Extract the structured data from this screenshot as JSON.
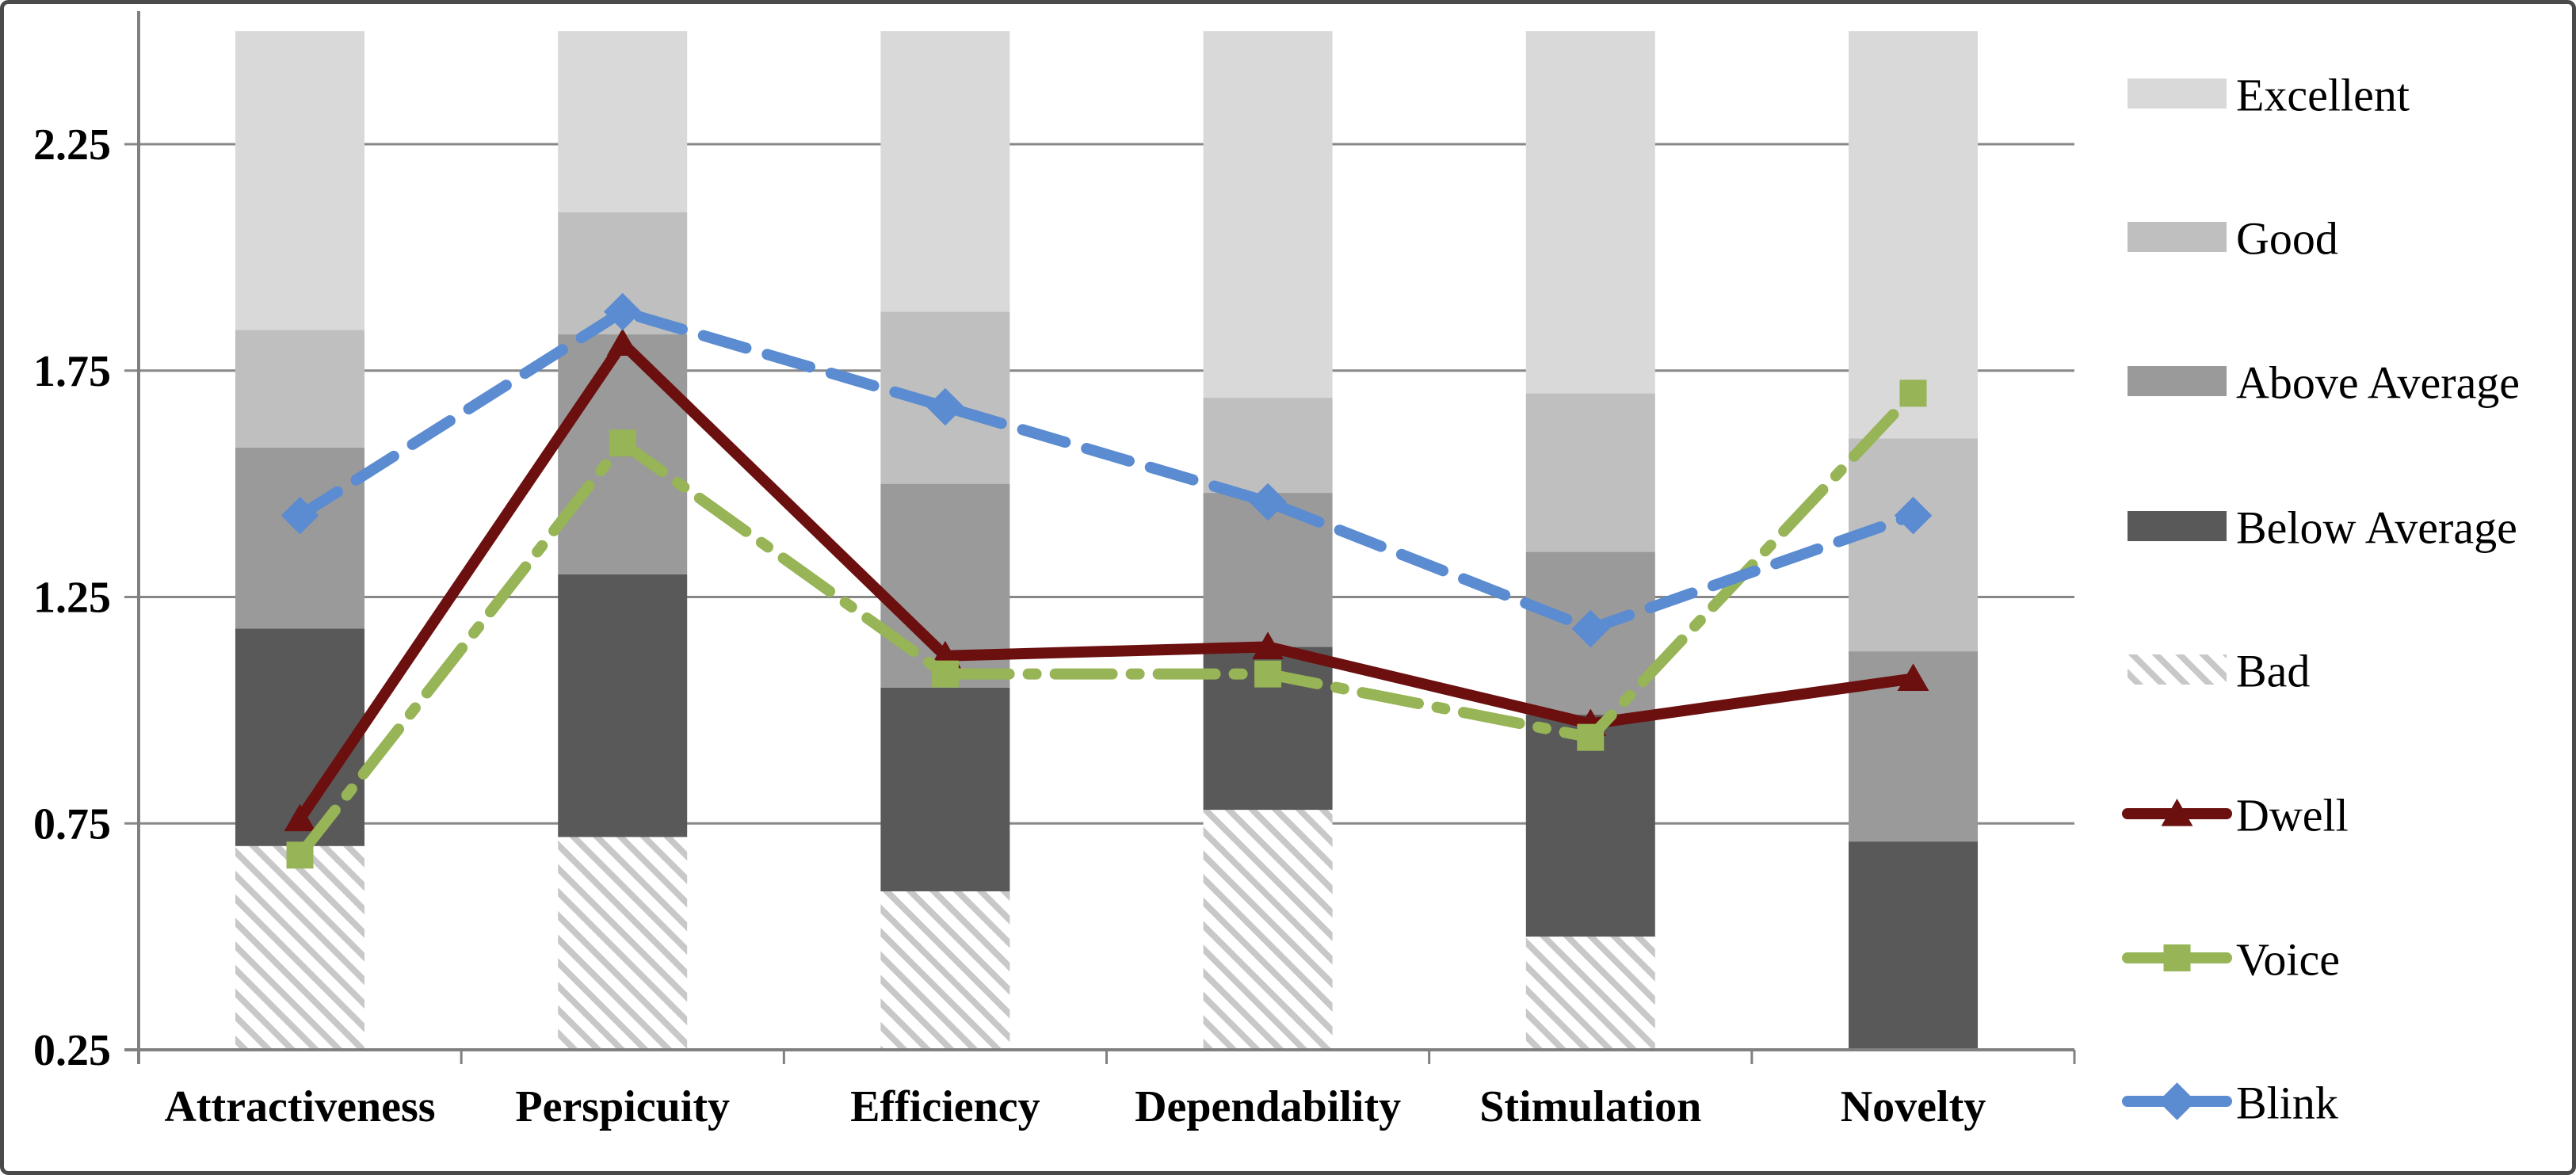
{
  "chart_data": {
    "type": "combo-stacked-band-line",
    "title": "",
    "categories": [
      "Attractiveness",
      "Perspicuity",
      "Efficiency",
      "Dependability",
      "Stimulation",
      "Novelty"
    ],
    "y_axis": {
      "min": 0.25,
      "max": 2.54,
      "tick_values": [
        0.25,
        0.75,
        1.25,
        1.75,
        2.25
      ],
      "tick_labels": [
        "0.25",
        "0.75",
        "1.25",
        "1.75",
        "2.25"
      ],
      "grid": true
    },
    "benchmark_bands": {
      "names": [
        "Excellent",
        "Good",
        "Above Average",
        "Below Average",
        "Bad"
      ],
      "boundaries": {
        "bad_top": [
          0.7,
          0.72,
          0.6,
          0.78,
          0.5,
          0.16
        ],
        "below_average_top": [
          1.18,
          1.3,
          1.05,
          1.14,
          0.99,
          0.71
        ],
        "above_average_top": [
          1.58,
          1.83,
          1.5,
          1.48,
          1.35,
          1.13
        ],
        "good_top": [
          1.84,
          2.1,
          1.88,
          1.69,
          1.7,
          1.6
        ],
        "excellent_top": 2.5
      },
      "colors": {
        "excellent": "#D9D9D9",
        "good": "#BFBFBF",
        "above_average": "#9A9A9A",
        "below_average": "#595959",
        "bad_stripe": "#C8C8C8",
        "bad_background": "#FFFFFF"
      }
    },
    "series": [
      {
        "name": "Dwell",
        "color": "#6B0F0F",
        "marker": "triangle",
        "line_style": "solid",
        "values": [
          0.76,
          1.81,
          1.12,
          1.14,
          0.97,
          1.07
        ]
      },
      {
        "name": "Voice",
        "color": "#97B456",
        "marker": "square",
        "line_style": "dash-dot",
        "values": [
          0.68,
          1.59,
          1.08,
          1.08,
          0.94,
          1.7
        ]
      },
      {
        "name": "Blink",
        "color": "#5B8BD0",
        "marker": "diamond",
        "line_style": "dashed",
        "values": [
          1.43,
          1.88,
          1.67,
          1.46,
          1.18,
          1.43
        ]
      }
    ],
    "legend_labels": [
      "Excellent",
      "Good",
      "Above Average",
      "Below Average",
      "Bad",
      "Dwell",
      "Voice",
      "Blink"
    ],
    "legend_position": "right",
    "axis_color": "#808080",
    "gridline_color": "#878787",
    "border_color": "#4A4A4A"
  }
}
